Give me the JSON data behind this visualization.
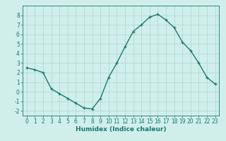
{
  "x": [
    0,
    1,
    2,
    3,
    4,
    5,
    6,
    7,
    8,
    9,
    10,
    11,
    12,
    13,
    14,
    15,
    16,
    17,
    18,
    19,
    20,
    21,
    22,
    23
  ],
  "y": [
    2.5,
    2.3,
    2.0,
    0.3,
    -0.2,
    -0.7,
    -1.2,
    -1.7,
    -1.8,
    -0.7,
    1.5,
    3.0,
    4.7,
    6.3,
    7.0,
    7.8,
    8.1,
    7.5,
    6.7,
    5.2,
    4.3,
    3.0,
    1.5,
    0.8
  ],
  "line_color": "#1a7a6e",
  "marker_color": "#1a7a6e",
  "bg_color": "#d0eeea",
  "grid_color": "#aad8d2",
  "xlabel": "Humidex (Indice chaleur)",
  "ylim": [
    -2.5,
    9.0
  ],
  "xlim": [
    -0.5,
    23.5
  ],
  "yticks": [
    -2,
    -1,
    0,
    1,
    2,
    3,
    4,
    5,
    6,
    7,
    8
  ],
  "xticks": [
    0,
    1,
    2,
    3,
    4,
    5,
    6,
    7,
    8,
    9,
    10,
    11,
    12,
    13,
    14,
    15,
    16,
    17,
    18,
    19,
    20,
    21,
    22,
    23
  ],
  "xlabel_fontsize": 6.5,
  "tick_fontsize": 5.5,
  "linewidth": 1.0,
  "markersize": 3.5
}
